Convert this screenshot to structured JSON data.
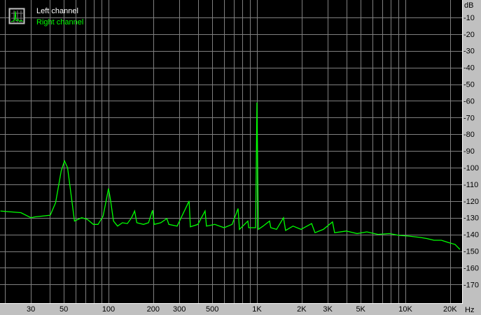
{
  "colors": {
    "background": "#c0c0c0",
    "plot": "#000000",
    "grid": "#808080",
    "left_channel": "#ffffff",
    "right_channel": "#00ff00"
  },
  "legend": {
    "icon": "spectrum-icon",
    "items": [
      {
        "label": "Left channel",
        "color": "#ffffff"
      },
      {
        "label": "Right channel",
        "color": "#00ff00"
      }
    ]
  },
  "chart_data": {
    "type": "line",
    "xscale": "log",
    "xlim": [
      18.7,
      24000
    ],
    "ylim": [
      -180,
      0
    ],
    "grid": true,
    "legend_position": "top-left",
    "xunit": "Hz",
    "yunit": "dB",
    "xticks": [
      {
        "value": 30,
        "label": "30"
      },
      {
        "value": 50,
        "label": "50"
      },
      {
        "value": 100,
        "label": "100"
      },
      {
        "value": 200,
        "label": "200"
      },
      {
        "value": 300,
        "label": "300"
      },
      {
        "value": 500,
        "label": "500"
      },
      {
        "value": 1000,
        "label": "1K"
      },
      {
        "value": 2000,
        "label": "2K"
      },
      {
        "value": 3000,
        "label": "3K"
      },
      {
        "value": 5000,
        "label": "5K"
      },
      {
        "value": 10000,
        "label": "10K"
      },
      {
        "value": 20000,
        "label": "20K"
      }
    ],
    "yticks": [
      {
        "value": -10,
        "label": "-10"
      },
      {
        "value": -20,
        "label": "-20"
      },
      {
        "value": -30,
        "label": "-30"
      },
      {
        "value": -40,
        "label": "-40"
      },
      {
        "value": -50,
        "label": "-50"
      },
      {
        "value": -60,
        "label": "-60"
      },
      {
        "value": -70,
        "label": "-70"
      },
      {
        "value": -80,
        "label": "-80"
      },
      {
        "value": -90,
        "label": "-90"
      },
      {
        "value": -100,
        "label": "-100"
      },
      {
        "value": -110,
        "label": "-110"
      },
      {
        "value": -120,
        "label": "-120"
      },
      {
        "value": -130,
        "label": "-130"
      },
      {
        "value": -140,
        "label": "-140"
      },
      {
        "value": -150,
        "label": "-150"
      },
      {
        "value": -160,
        "label": "-160"
      },
      {
        "value": -170,
        "label": "-170"
      }
    ],
    "series": [
      {
        "name": "Right channel",
        "color": "#00ff00",
        "points": [
          [
            18.7,
            -126
          ],
          [
            25.7,
            -127
          ],
          [
            30,
            -130
          ],
          [
            32,
            -129.5
          ],
          [
            40.5,
            -128.5
          ],
          [
            44,
            -121
          ],
          [
            48,
            -102
          ],
          [
            50.5,
            -96
          ],
          [
            53,
            -100
          ],
          [
            59,
            -132
          ],
          [
            66,
            -130
          ],
          [
            72,
            -131
          ],
          [
            79,
            -134
          ],
          [
            85,
            -134
          ],
          [
            92,
            -129
          ],
          [
            100,
            -112.5
          ],
          [
            103,
            -119
          ],
          [
            108,
            -132
          ],
          [
            115,
            -135
          ],
          [
            124,
            -133
          ],
          [
            134,
            -133.5
          ],
          [
            143,
            -130
          ],
          [
            150,
            -126
          ],
          [
            155,
            -133
          ],
          [
            172,
            -134
          ],
          [
            186,
            -133
          ],
          [
            198,
            -125.5
          ],
          [
            203,
            -134
          ],
          [
            225,
            -133
          ],
          [
            247,
            -130.5
          ],
          [
            255,
            -134
          ],
          [
            290,
            -135
          ],
          [
            349,
            -120
          ],
          [
            356,
            -135.5
          ],
          [
            400,
            -134
          ],
          [
            447,
            -126
          ],
          [
            457,
            -135
          ],
          [
            520,
            -134
          ],
          [
            600,
            -136
          ],
          [
            680,
            -134
          ],
          [
            746,
            -124.5
          ],
          [
            762,
            -137
          ],
          [
            868,
            -132
          ],
          [
            880,
            -136
          ],
          [
            980,
            -136
          ],
          [
            1000,
            -61
          ],
          [
            1022,
            -137
          ],
          [
            1100,
            -135
          ],
          [
            1216,
            -132
          ],
          [
            1240,
            -136
          ],
          [
            1355,
            -137
          ],
          [
            1510,
            -130
          ],
          [
            1560,
            -137.6
          ],
          [
            1750,
            -135
          ],
          [
            1980,
            -137
          ],
          [
            2335,
            -133.5
          ],
          [
            2460,
            -139
          ],
          [
            2800,
            -137
          ],
          [
            3228,
            -132.5
          ],
          [
            3335,
            -139
          ],
          [
            4000,
            -138
          ],
          [
            4725,
            -139.5
          ],
          [
            5500,
            -138.5
          ],
          [
            6540,
            -140
          ],
          [
            7800,
            -139.5
          ],
          [
            9070,
            -140.6
          ],
          [
            10500,
            -141
          ],
          [
            12550,
            -141.8
          ],
          [
            14000,
            -142.5
          ],
          [
            15600,
            -143.5
          ],
          [
            17500,
            -143.5
          ],
          [
            19400,
            -144.8
          ],
          [
            21600,
            -146
          ],
          [
            23300,
            -149
          ]
        ]
      }
    ]
  }
}
